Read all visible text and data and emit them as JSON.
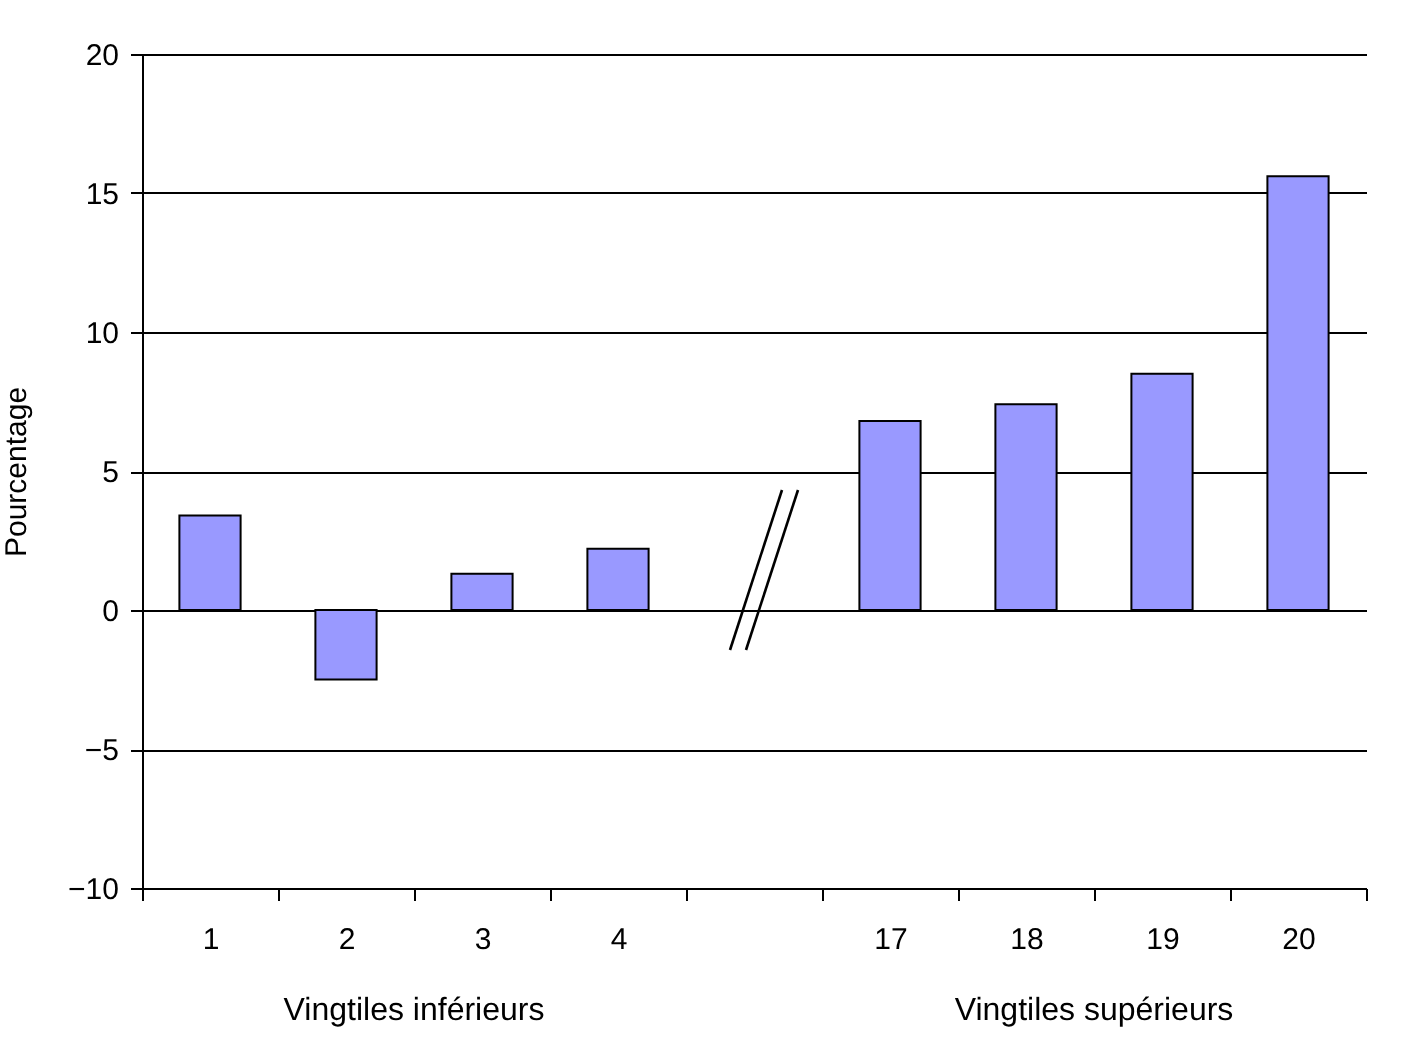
{
  "chart_data": {
    "type": "bar",
    "ylabel": "Pourcentage",
    "categories": [
      "1",
      "2",
      "3",
      "4",
      null,
      "17",
      "18",
      "19",
      "20"
    ],
    "values": [
      3.4,
      -2.5,
      1.3,
      2.2,
      null,
      6.8,
      7.4,
      8.5,
      15.6
    ],
    "color": "#9999ff",
    "ylim": [
      -10,
      20
    ],
    "yticks": [
      -10,
      -5,
      0,
      5,
      10,
      15,
      20
    ],
    "grid": "y",
    "annotations": [
      "Vingtiles inférieurs",
      "Vingtiles supérieurs"
    ]
  }
}
